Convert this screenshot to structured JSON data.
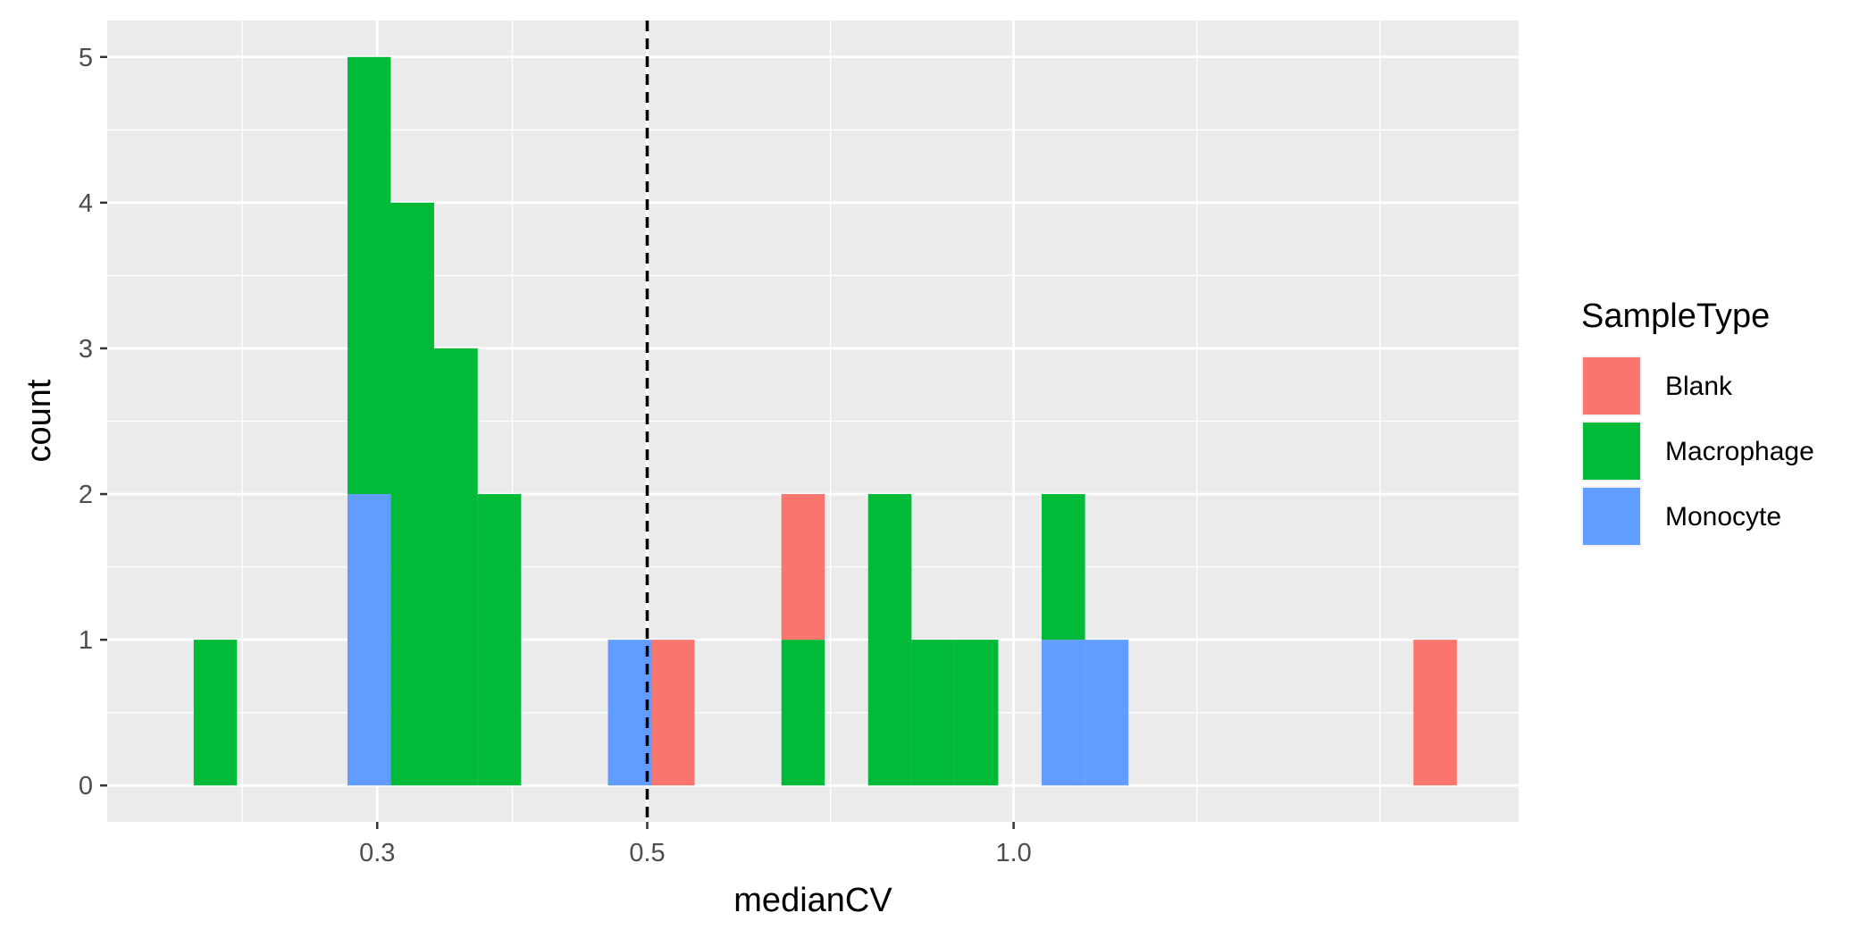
{
  "chart_data": {
    "type": "bar",
    "subtype": "stacked-histogram",
    "x_scale": "log10",
    "xlabel": "medianCV",
    "ylabel": "count",
    "xlim": [
      0.18,
      2.6
    ],
    "ylim": [
      -0.25,
      5.25
    ],
    "x_ticks": [
      {
        "value": 0.3,
        "label": "0.3"
      },
      {
        "value": 0.5,
        "label": "0.5"
      },
      {
        "value": 1.0,
        "label": "1.0"
      }
    ],
    "y_ticks": [
      {
        "value": 0,
        "label": "0"
      },
      {
        "value": 1,
        "label": "1"
      },
      {
        "value": 2,
        "label": "2"
      },
      {
        "value": 3,
        "label": "3"
      },
      {
        "value": 4,
        "label": "4"
      },
      {
        "value": 5,
        "label": "5"
      }
    ],
    "vline": {
      "x": 0.5,
      "style": "dashed",
      "color": "#000000"
    },
    "grid": true,
    "legend": {
      "title": "SampleType",
      "position": "right"
    },
    "bins": [
      {
        "xmin": 0.212,
        "xmax": 0.2301
      },
      {
        "xmin": 0.2836,
        "xmax": 0.3078
      },
      {
        "xmin": 0.3078,
        "xmax": 0.3341
      },
      {
        "xmin": 0.3341,
        "xmax": 0.3628
      },
      {
        "xmin": 0.3628,
        "xmax": 0.3939
      },
      {
        "xmin": 0.4642,
        "xmax": 0.5038
      },
      {
        "xmin": 0.5038,
        "xmax": 0.5469
      },
      {
        "xmin": 0.6445,
        "xmax": 0.6996
      },
      {
        "xmin": 0.7594,
        "xmax": 0.8244
      },
      {
        "xmin": 0.8244,
        "xmax": 0.8949
      },
      {
        "xmin": 0.8949,
        "xmax": 0.9714
      },
      {
        "xmin": 1.0545,
        "xmax": 1.1447
      },
      {
        "xmin": 1.1447,
        "xmax": 1.2426
      },
      {
        "xmin": 2.1308,
        "xmax": 2.3131
      }
    ],
    "series": [
      {
        "name": "Blank",
        "color": "#F8766D",
        "values": [
          0,
          0,
          0,
          0,
          0,
          0,
          1,
          1,
          0,
          0,
          0,
          0,
          0,
          1
        ]
      },
      {
        "name": "Macrophage",
        "color": "#00BA38",
        "values": [
          1,
          3,
          4,
          3,
          2,
          0,
          0,
          1,
          2,
          1,
          1,
          1,
          0,
          0
        ]
      },
      {
        "name": "Monocyte",
        "color": "#619CFF",
        "values": [
          0,
          2,
          0,
          0,
          0,
          1,
          0,
          0,
          0,
          0,
          0,
          1,
          1,
          0
        ]
      }
    ]
  }
}
